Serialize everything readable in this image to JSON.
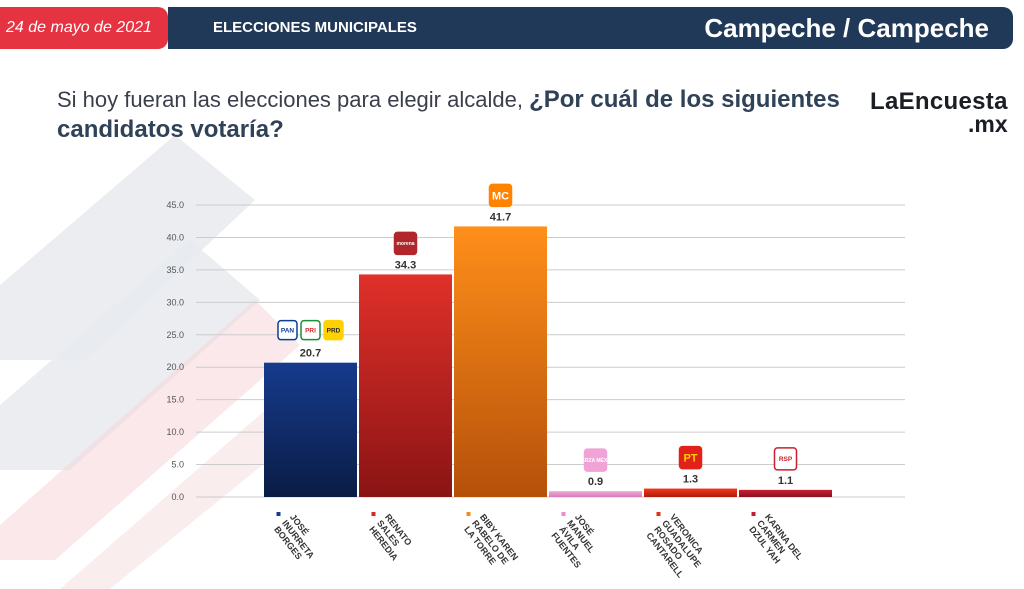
{
  "header": {
    "date": "24 de mayo de 2021",
    "section": "ELECCIONES MUNICIPALES",
    "location": "Campeche / Campeche"
  },
  "question": {
    "part1": "Si hoy fueran las elecciones para elegir alcalde,",
    "part2": "¿Por cuál de los siguientes candidatos votaría?"
  },
  "brand": {
    "name": "LaEncuesta",
    "tld": ".mx"
  },
  "colors": {
    "header_red": "#e63341",
    "header_navy": "#213959"
  },
  "chart_data": {
    "type": "bar",
    "title": "",
    "xlabel": "",
    "ylabel": "",
    "ylim": [
      0,
      45
    ],
    "yticks": [
      "0.0",
      "5.0",
      "10.0",
      "15.0",
      "20.0",
      "25.0",
      "30.0",
      "35.0",
      "40.0",
      "45.0"
    ],
    "grid": true,
    "categories": [
      [
        "JOSÉ",
        "INURRETA",
        "BORGES"
      ],
      [
        "RENATO",
        "SALES",
        "HEREDIA"
      ],
      [
        "BIBY KAREN",
        "RABELO DE",
        "LA TORRE"
      ],
      [
        "JOSÉ",
        "MANUEL",
        "ÁVILA",
        "FUENTES"
      ],
      [
        "VERONICA",
        "GUADALUPE",
        "ROSADO",
        "CANTARELL"
      ],
      [
        "KARINA DEL",
        "CARMEN",
        "DZUL YAH"
      ]
    ],
    "values": [
      20.7,
      34.3,
      41.7,
      0.9,
      1.3,
      1.1
    ],
    "value_labels": [
      "20.7",
      "34.3",
      "41.7",
      "0.9",
      "1.3",
      "1.1"
    ],
    "bar_colors": [
      [
        "#163b8c",
        "#0a1c45"
      ],
      [
        "#e0302a",
        "#8a1414"
      ],
      [
        "#ff8f1a",
        "#b5500a"
      ],
      [
        "#f2a8d8",
        "#d87bb8"
      ],
      [
        "#f03a1a",
        "#b01a0e"
      ],
      [
        "#c92032",
        "#8a1020"
      ]
    ],
    "marker_colors": [
      "#163b8c",
      "#d42a24",
      "#f68a1e",
      "#e88dc8",
      "#e0321a",
      "#c01e30"
    ],
    "party_logos": [
      [
        {
          "text": "PAN",
          "bg": "#ffffff",
          "fg": "#0d3d99",
          "border": "#0d3d99"
        },
        {
          "text": "PRI",
          "bg": "#ffffff",
          "fg": "#d4282b",
          "border": "#1a8f3a"
        },
        {
          "text": "PRD",
          "bg": "#ffd100",
          "fg": "#2a2a2a",
          "border": "#ffd100"
        }
      ],
      [
        {
          "text": "morena",
          "bg": "#b0262a",
          "fg": "#ffffff",
          "border": "#b0262a"
        }
      ],
      [
        {
          "text": "MC",
          "bg": "#ff8300",
          "fg": "#ffffff",
          "border": "#ff8300"
        }
      ],
      [
        {
          "text": "FUERZA MÉXICO",
          "bg": "#f0a3d6",
          "fg": "#ffffff",
          "border": "#f0a3d6"
        }
      ],
      [
        {
          "text": "PT",
          "bg": "#e3211b",
          "fg": "#ffd200",
          "border": "#e3211b"
        }
      ],
      [
        {
          "text": "RSP",
          "bg": "#ffffff",
          "fg": "#c8202f",
          "border": "#c8202f"
        }
      ]
    ]
  }
}
